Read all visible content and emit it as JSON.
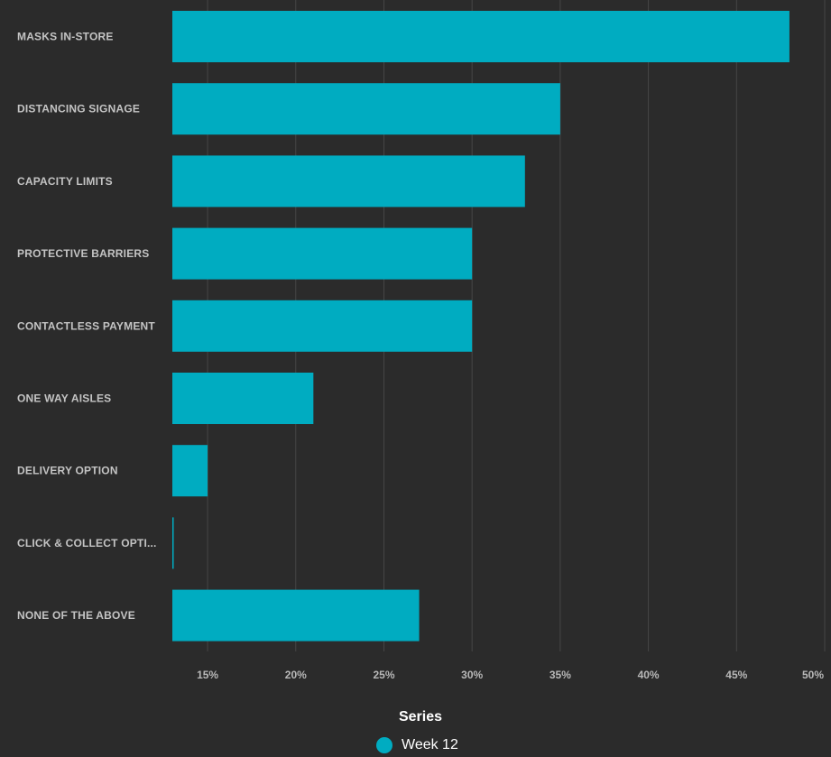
{
  "chart_data": {
    "type": "bar",
    "orientation": "horizontal",
    "categories": [
      "MASKS IN-STORE",
      "DISTANCING SIGNAGE",
      "CAPACITY LIMITS",
      "PROTECTIVE BARRIERS",
      "CONTACTLESS PAYMENT",
      "ONE WAY AISLES",
      "DELIVERY OPTION",
      "CLICK & COLLECT OPTI...",
      "NONE OF THE ABOVE"
    ],
    "series": [
      {
        "name": "Week 12",
        "values": [
          48,
          35,
          33,
          30,
          30,
          21,
          15,
          13,
          27
        ]
      }
    ],
    "xlim": [
      13,
      50
    ],
    "xticks": [
      15,
      20,
      25,
      30,
      35,
      40,
      45,
      50
    ],
    "tick_format": "{v}%",
    "grid": true,
    "legend_position": "bottom",
    "legend_title": "Series",
    "colors": {
      "background": "#2b2b2b",
      "bar": "#00acc1",
      "grid": "#464646"
    }
  }
}
